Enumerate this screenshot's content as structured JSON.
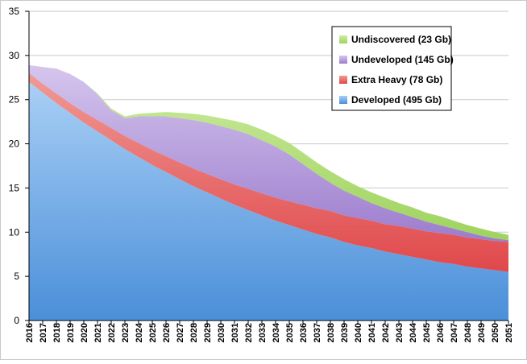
{
  "chart_data": {
    "type": "area",
    "stacked": true,
    "title": "",
    "xlabel": "",
    "ylabel": "",
    "ylim": [
      0,
      35
    ],
    "yticks": [
      0,
      5,
      10,
      15,
      20,
      25,
      30,
      35
    ],
    "grid": true,
    "legend_position": "top-right",
    "categories": [
      "2016",
      "2017",
      "2018",
      "2019",
      "2020",
      "2021",
      "2022",
      "2023",
      "2024",
      "2025",
      "2026",
      "2027",
      "2028",
      "2029",
      "2030",
      "2031",
      "2032",
      "2033",
      "2034",
      "2035",
      "2036",
      "2037",
      "2038",
      "2039",
      "2040",
      "2041",
      "2042",
      "2043",
      "2044",
      "2045",
      "2046",
      "2047",
      "2048",
      "2049",
      "2050",
      "2051"
    ],
    "series": [
      {
        "name": "Developed (495 Gb)",
        "color": "#5b9bd5",
        "values": [
          27.0,
          25.8,
          24.6,
          23.5,
          22.4,
          21.4,
          20.4,
          19.4,
          18.5,
          17.6,
          16.8,
          16.0,
          15.2,
          14.5,
          13.8,
          13.1,
          12.5,
          11.9,
          11.3,
          10.8,
          10.3,
          9.8,
          9.4,
          8.9,
          8.5,
          8.2,
          7.8,
          7.5,
          7.2,
          6.9,
          6.6,
          6.4,
          6.1,
          5.9,
          5.7,
          5.5
        ]
      },
      {
        "name": "Extra Heavy (78 Gb)",
        "color": "#e8595a",
        "values": [
          1.0,
          1.0,
          1.1,
          1.1,
          1.2,
          1.3,
          1.4,
          1.5,
          1.6,
          1.7,
          1.8,
          1.9,
          2.0,
          2.1,
          2.2,
          2.3,
          2.4,
          2.5,
          2.6,
          2.7,
          2.8,
          2.9,
          3.0,
          3.0,
          3.1,
          3.1,
          3.1,
          3.2,
          3.2,
          3.2,
          3.3,
          3.3,
          3.3,
          3.3,
          3.3,
          3.4
        ]
      },
      {
        "name": "Undeveloped (145 Gb)",
        "color": "#a98bd6",
        "values": [
          0.9,
          1.9,
          2.8,
          3.3,
          3.4,
          2.9,
          2.0,
          2.0,
          3.0,
          3.8,
          4.5,
          5.0,
          5.5,
          5.8,
          6.0,
          6.2,
          6.2,
          6.0,
          5.8,
          5.3,
          4.6,
          3.9,
          3.2,
          2.8,
          2.4,
          2.0,
          1.8,
          1.5,
          1.3,
          1.1,
          0.9,
          0.7,
          0.6,
          0.4,
          0.3,
          0.2
        ]
      },
      {
        "name": "Undiscovered (23 Gb)",
        "color": "#b7e07e",
        "values": [
          0.0,
          0.0,
          0.0,
          0.0,
          0.0,
          0.1,
          0.2,
          0.2,
          0.3,
          0.4,
          0.5,
          0.6,
          0.7,
          0.8,
          0.9,
          1.0,
          1.1,
          1.2,
          1.2,
          1.3,
          1.3,
          1.3,
          1.3,
          1.3,
          1.2,
          1.2,
          1.2,
          1.1,
          1.1,
          1.0,
          1.0,
          0.9,
          0.8,
          0.8,
          0.7,
          0.6
        ]
      }
    ]
  }
}
